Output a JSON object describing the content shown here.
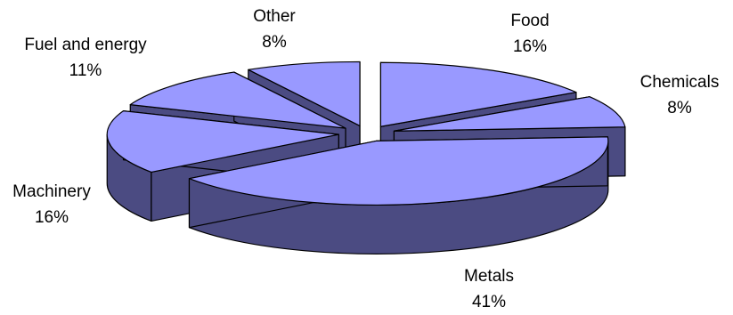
{
  "chart_data": {
    "type": "pie",
    "style": "3d-exploded",
    "slices": [
      {
        "name": "Food",
        "value": 16,
        "label": "16%"
      },
      {
        "name": "Chemicals",
        "value": 8,
        "label": "8%"
      },
      {
        "name": "Metals",
        "value": 41,
        "label": "41%"
      },
      {
        "name": "Machinery",
        "value": 16,
        "label": "16%"
      },
      {
        "name": "Fuel and energy",
        "value": 11,
        "label": "11%"
      },
      {
        "name": "Other",
        "value": 8,
        "label": "8%"
      }
    ],
    "colors": {
      "top": "#9999ff",
      "side": "#4b4b82",
      "edge": "#000000"
    },
    "legend": "none"
  }
}
